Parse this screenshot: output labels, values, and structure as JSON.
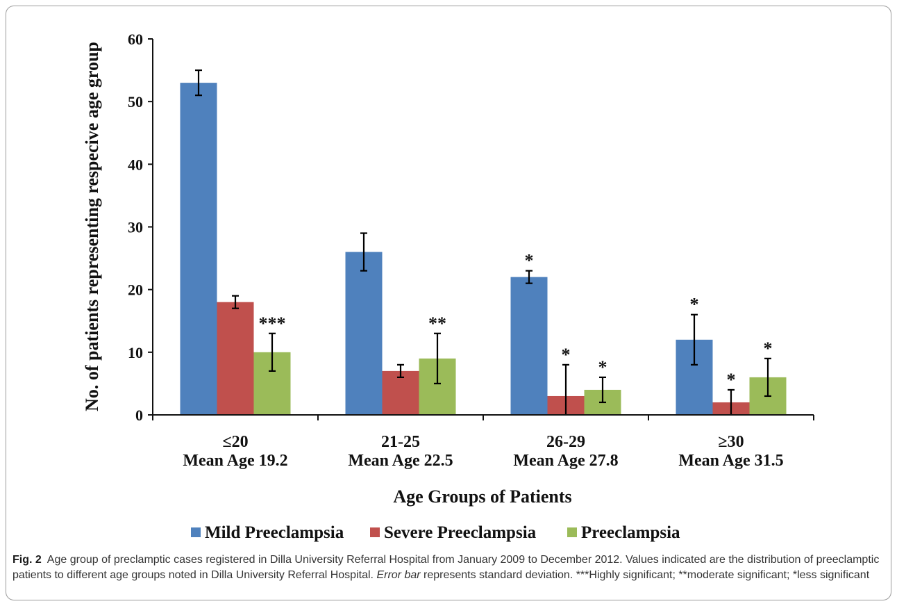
{
  "chart_data": {
    "type": "bar",
    "xlabel": "Age Groups of Patients",
    "ylabel": "No. of patients representing respecive age group",
    "ylim": [
      0,
      60
    ],
    "yticks": [
      "0",
      "10",
      "20",
      "30",
      "40",
      "50",
      "60"
    ],
    "categories": [
      {
        "line1": "≤20",
        "line2": "Mean Age 19.2"
      },
      {
        "line1": "21-25",
        "line2": "Mean Age 22.5"
      },
      {
        "line1": "26-29",
        "line2": "Mean Age 27.8"
      },
      {
        "line1": "≥30",
        "line2": "Mean Age 31.5"
      }
    ],
    "series": [
      {
        "name": "Mild Preeclampsia",
        "color": "#4f81bd",
        "values": [
          53,
          26,
          22,
          12
        ],
        "errors": [
          2,
          3,
          1,
          4
        ],
        "markers": [
          "",
          "",
          "*",
          "*"
        ]
      },
      {
        "name": "Severe Preeclampsia",
        "color": "#c0504d",
        "values": [
          18,
          7,
          3,
          2
        ],
        "errors": [
          1,
          1,
          5,
          2
        ],
        "markers": [
          "",
          "",
          "*",
          "*"
        ]
      },
      {
        "name": "Preeclampsia",
        "color": "#9bbb59",
        "values": [
          10,
          9,
          4,
          6
        ],
        "errors": [
          3,
          4,
          2,
          3
        ],
        "markers": [
          "***",
          "**",
          "*",
          "*"
        ]
      }
    ],
    "legend_position": "bottom",
    "grid": false
  },
  "caption": {
    "label": "Fig. 2",
    "text_1": "Age group of preclamptic cases registered in Dilla University Referral Hospital from January 2009 to December 2012. Values indicated are the distribution of preeclamptic patients to different age groups noted in Dilla University Referral Hospital.",
    "text_italic": "Error bar",
    "text_2": "represents standard deviation. ***Highly significant; **moderate significant; *less significant"
  }
}
